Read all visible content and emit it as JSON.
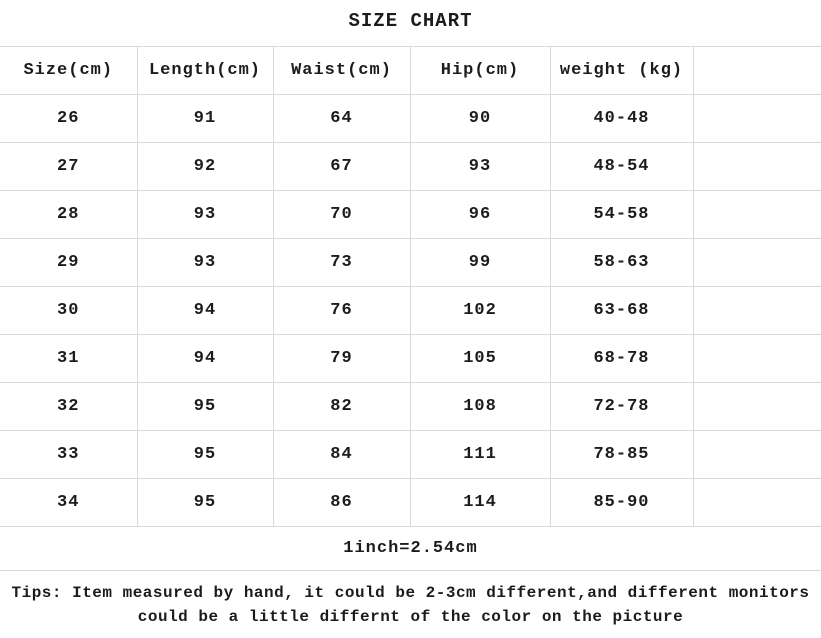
{
  "page": {
    "title": "SIZE CHART",
    "background_color": "#ffffff",
    "border_color": "#d9d9d9",
    "text_color": "#1c1c1c"
  },
  "table": {
    "columns": [
      "Size(cm)",
      "Length(cm)",
      "Waist(cm)",
      "Hip(cm)",
      "weight (kg)",
      ""
    ],
    "rows": [
      [
        "26",
        "91",
        "64",
        "90",
        "40-48",
        ""
      ],
      [
        "27",
        "92",
        "67",
        "93",
        "48-54",
        ""
      ],
      [
        "28",
        "93",
        "70",
        "96",
        "54-58",
        ""
      ],
      [
        "29",
        "93",
        "73",
        "99",
        "58-63",
        ""
      ],
      [
        "30",
        "94",
        "76",
        "102",
        "63-68",
        ""
      ],
      [
        "31",
        "94",
        "79",
        "105",
        "68-78",
        ""
      ],
      [
        "32",
        "95",
        "82",
        "108",
        "72-78",
        ""
      ],
      [
        "33",
        "95",
        "84",
        "111",
        "78-85",
        ""
      ],
      [
        "34",
        "95",
        "86",
        "114",
        "85-90",
        ""
      ]
    ],
    "footer_note": "1inch=2.54cm"
  },
  "tips": {
    "line1": "Tips: Item measured by hand, it could be 2-3cm different,and different monitors",
    "line2": "could be a little differnt of the color on the picture"
  }
}
